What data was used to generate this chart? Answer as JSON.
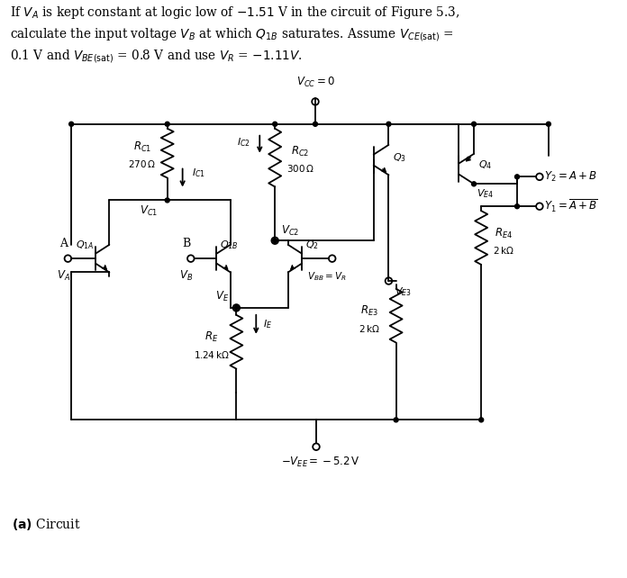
{
  "bg_color": "#ffffff",
  "line_color": "#000000",
  "lw": 1.3,
  "dot_r": 0.025,
  "oc_r": 0.038
}
